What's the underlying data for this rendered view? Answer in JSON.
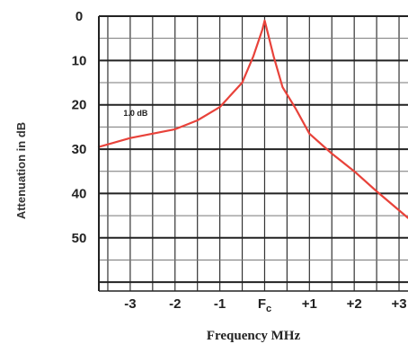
{
  "chart_data": {
    "type": "line",
    "title": "",
    "xlabel": "Frequency MHz",
    "ylabel": "Attenuation in dB",
    "x_tick_labels": [
      "-3",
      "-2",
      "-1",
      "Fc",
      "+1",
      "+2",
      "+3"
    ],
    "y_tick_labels": [
      "0",
      "10",
      "20",
      "30",
      "40",
      "50"
    ],
    "xlim": [
      -3.7,
      3.2
    ],
    "ylim": [
      0,
      62
    ],
    "y_inverted": true,
    "grid": true,
    "series": [
      {
        "color": "#e8423a",
        "points": [
          [
            -3.7,
            29.5
          ],
          [
            -3.0,
            27.5
          ],
          [
            -2.5,
            26.5
          ],
          [
            -2.0,
            25.5
          ],
          [
            -1.5,
            23.5
          ],
          [
            -1.0,
            20.5
          ],
          [
            -0.5,
            15.0
          ],
          [
            -0.25,
            9.0
          ],
          [
            -0.05,
            3.0
          ],
          [
            0.0,
            1.0
          ],
          [
            0.05,
            3.0
          ],
          [
            0.2,
            9.0
          ],
          [
            0.4,
            16.0
          ],
          [
            0.7,
            21.0
          ],
          [
            1.0,
            26.5
          ],
          [
            1.5,
            31.0
          ],
          [
            2.0,
            35.0
          ],
          [
            2.5,
            39.5
          ],
          [
            3.2,
            45.5
          ]
        ]
      }
    ],
    "annotations": [
      {
        "text": "1.0 dB",
        "x": -3.15,
        "y": 22.5
      }
    ]
  }
}
